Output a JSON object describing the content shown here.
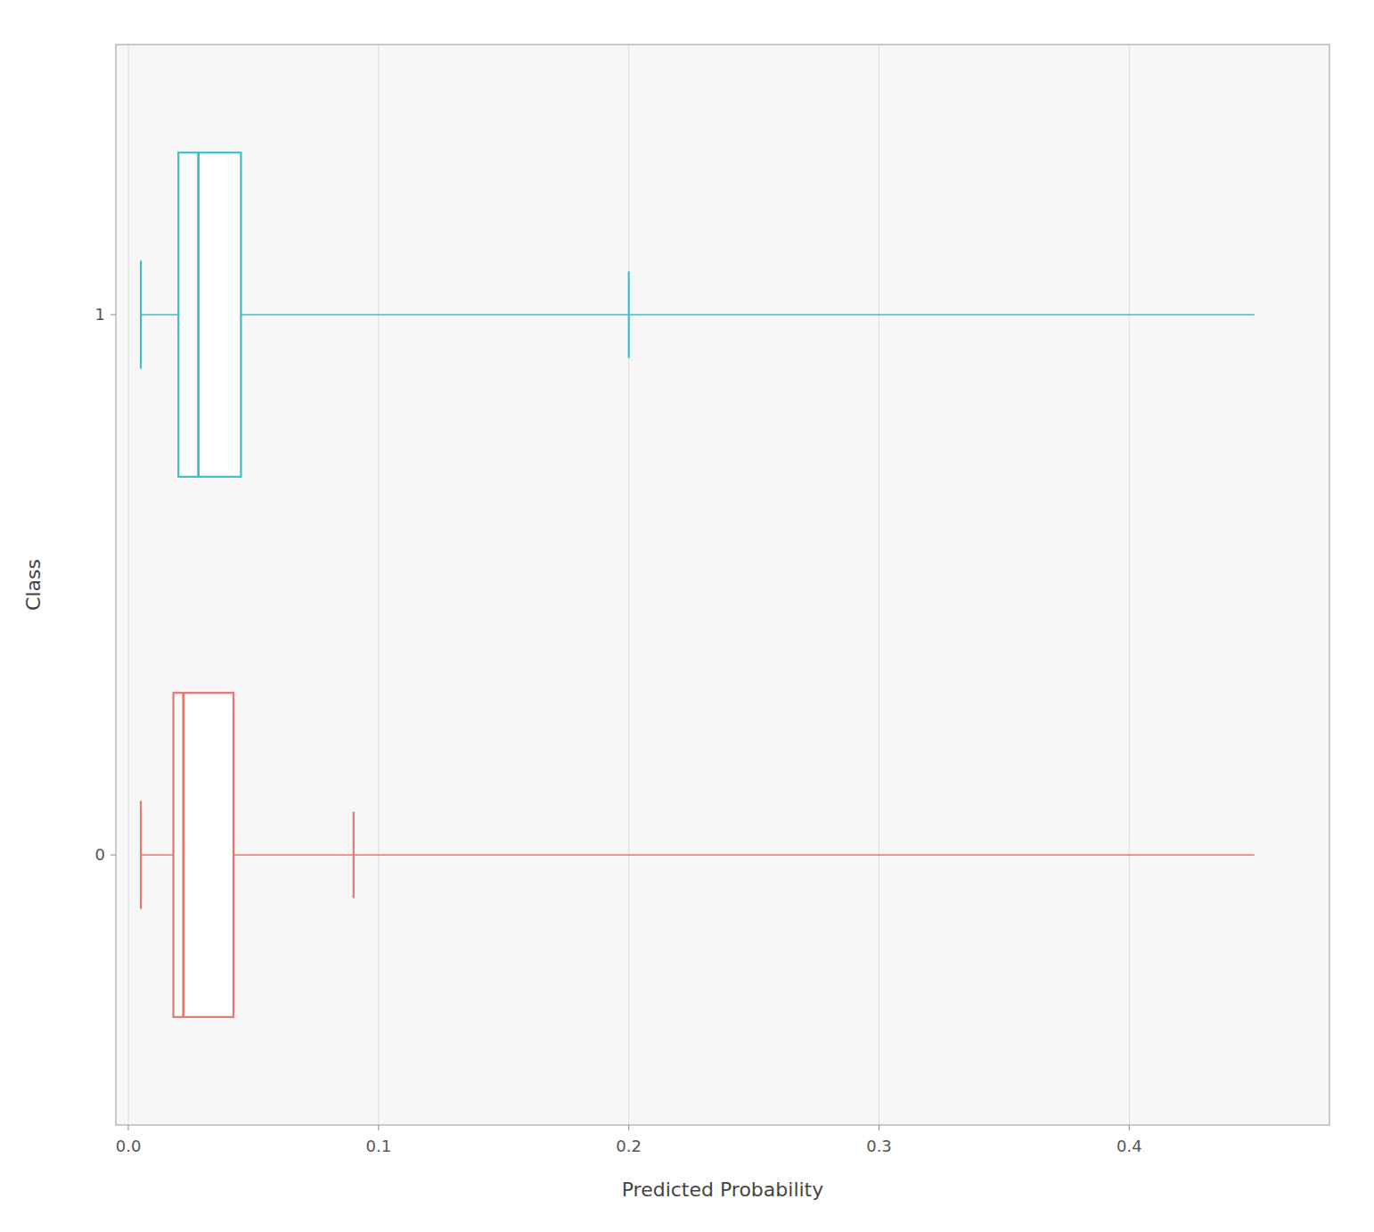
{
  "chart_data": {
    "type": "box",
    "orientation": "horizontal",
    "xlabel": "Predicted Probability",
    "ylabel": "Class",
    "categories": [
      "0",
      "1"
    ],
    "series": [
      {
        "color": "#E8766D",
        "whisker_low": 0.005,
        "q1": 0.018,
        "median": 0.022,
        "q3": 0.042,
        "whisker_high": 0.45,
        "whisker_mid_cap": 0.09
      },
      {
        "color": "#3DBEC5",
        "whisker_low": 0.005,
        "q1": 0.02,
        "median": 0.028,
        "q3": 0.045,
        "whisker_high": 0.45,
        "whisker_mid_cap": 0.2
      }
    ],
    "xlim": [
      -0.005,
      0.48
    ],
    "xticks": [
      {
        "value": 0.0,
        "label": "0.0"
      },
      0.1,
      0.2,
      0.3,
      0.4
    ],
    "grid": true
  }
}
